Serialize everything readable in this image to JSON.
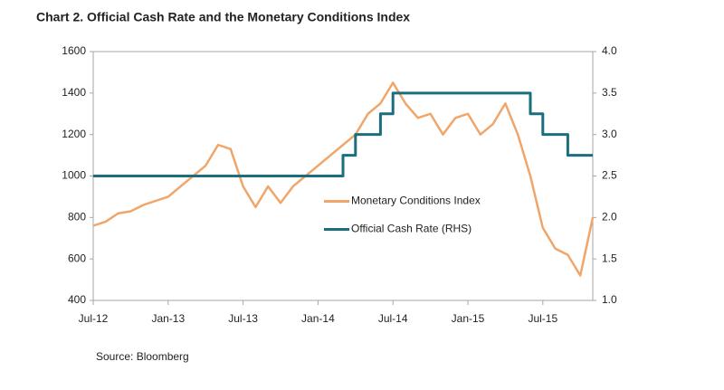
{
  "chart_data": {
    "type": "line",
    "title": "Chart 2.  Official Cash Rate and the Monetary Conditions Index",
    "source": "Source: Bloomberg",
    "categories": [
      "Jul-12",
      null,
      null,
      null,
      null,
      null,
      "Jan-13",
      null,
      null,
      null,
      null,
      null,
      "Jul-13",
      null,
      null,
      null,
      null,
      null,
      "Jan-14",
      null,
      null,
      null,
      null,
      null,
      "Jul-14",
      null,
      null,
      null,
      null,
      null,
      "Jan-15",
      null,
      null,
      null,
      null,
      null,
      "Jul-15",
      null,
      null,
      null,
      null
    ],
    "series": [
      {
        "name": "Monetary Conditions Index",
        "color": "#f0a66a",
        "axis": "y",
        "values": [
          760,
          780,
          820,
          830,
          860,
          880,
          900,
          950,
          1000,
          1050,
          1150,
          1130,
          950,
          850,
          950,
          870,
          950,
          1000,
          1050,
          1100,
          1150,
          1200,
          1300,
          1350,
          1450,
          1350,
          1280,
          1300,
          1200,
          1280,
          1300,
          1200,
          1250,
          1350,
          1200,
          1000,
          750,
          650,
          620,
          520,
          800
        ]
      },
      {
        "name": "Official Cash Rate (RHS)",
        "color": "#1a6e7e",
        "axis": "y2",
        "step": true,
        "values": [
          2.5,
          2.5,
          2.5,
          2.5,
          2.5,
          2.5,
          2.5,
          2.5,
          2.5,
          2.5,
          2.5,
          2.5,
          2.5,
          2.5,
          2.5,
          2.5,
          2.5,
          2.5,
          2.5,
          2.5,
          2.75,
          3.0,
          3.0,
          3.25,
          3.5,
          3.5,
          3.5,
          3.5,
          3.5,
          3.5,
          3.5,
          3.5,
          3.5,
          3.5,
          3.5,
          3.25,
          3.0,
          3.0,
          2.75,
          2.75,
          2.75
        ]
      }
    ],
    "ylim": [
      400,
      1600
    ],
    "yticks": [
      400,
      600,
      800,
      1000,
      1200,
      1400,
      1600
    ],
    "y2lim": [
      1.0,
      4.0
    ],
    "y2ticks": [
      {
        "value": 1.0,
        "label": "1.0"
      },
      1.5,
      {
        "value": 2.0,
        "label": "2.0"
      },
      2.5,
      {
        "value": 3.0,
        "label": "3.0"
      },
      3.5,
      {
        "value": 4.0,
        "label": "4.0"
      }
    ],
    "legend": "center-right"
  }
}
